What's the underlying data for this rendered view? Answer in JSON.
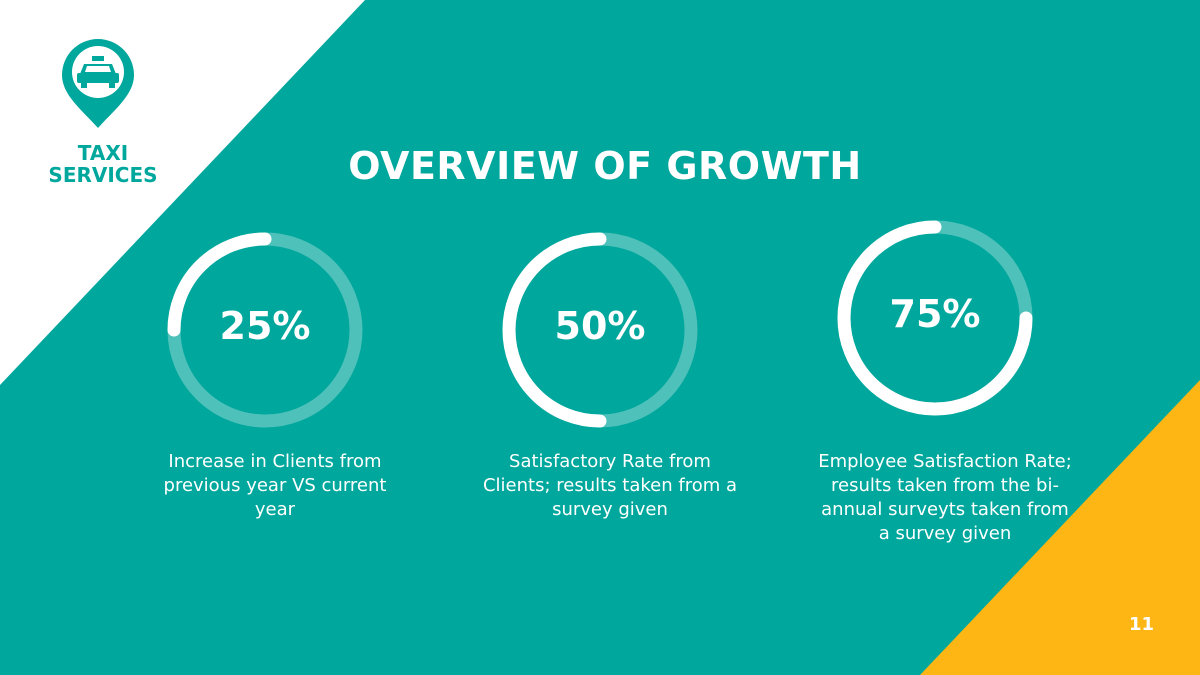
{
  "brand": "TAXI SERVICES",
  "title": "OVERVIEW OF GROWTH",
  "range": [
    0,
    100
  ],
  "stats": [
    {
      "value": 25,
      "value_label": "25%",
      "description": "Increase in Clients from previous year VS current year"
    },
    {
      "value": 50,
      "value_label": "50%",
      "description": "Satisfactory Rate from Clients; results taken from a survey given"
    },
    {
      "value": 75,
      "value_label": "75%",
      "description": "Employee Satisfaction Rate; results taken from the bi-annual surveyts taken from a survey given"
    }
  ],
  "page_number": "11"
}
